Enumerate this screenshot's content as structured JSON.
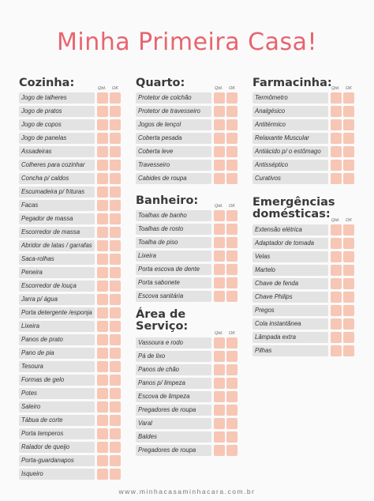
{
  "title": "Minha Primeira Casa!",
  "col_qtd": "Qtd.",
  "col_ok": "OK",
  "footer": "www.minhacasaminhacara.com.br",
  "sections": [
    {
      "id": "cozinha",
      "title": "Cozinha:",
      "items": [
        "Jogo de talheres",
        "Jogo de pratos",
        "Jogo de copos",
        "Jogo de panelas",
        "Assadeiras",
        "Colheres para cozinhar",
        "Concha p/ caldos",
        "Escumadeira p/ frituras",
        "Facas",
        "Pegador de massa",
        "Escorredor de massa",
        "Abridor de latas / garrafas",
        "Saca-rolhas",
        "Peneira",
        "Escorredor de louça",
        "Jarra p/ água",
        "Porta detergente /esponja",
        "Lixeira",
        "Panos de prato",
        "Pano de pia",
        "Tesoura",
        "Formas de gelo",
        "Potes",
        "Saleiro",
        "Tábua de corte",
        "Porta temperos",
        "Ralador de queijo",
        "Porta-guardanapos",
        "Isqueiro"
      ]
    },
    {
      "id": "quarto",
      "title": "Quarto:",
      "items": [
        "Protetor de colchão",
        "Protetor de travesseiro",
        "Jogos de lençol",
        "Coberta pesada",
        "Coberta leve",
        "Travesseiro",
        "Cabides de roupa"
      ]
    },
    {
      "id": "banheiro",
      "title": "Banheiro:",
      "items": [
        "Toalhas de banho",
        "Toalhas de rosto",
        "Toalha de piso",
        "Lixeira",
        "Porta escova de dente",
        "Porta sabonete",
        "Escova sanitária"
      ]
    },
    {
      "id": "servico",
      "title": "Área de",
      "title2": "Serviço:",
      "items": [
        "Vassoura e rodo",
        "Pá de lixo",
        "Panos de chão",
        "Panos p/ limpeza",
        "Escova de limpeza",
        "Pregadores de roupa",
        "Varal",
        "Baldes",
        "Pregadores de roupa"
      ]
    },
    {
      "id": "farmacinha",
      "title": "Farmacinha:",
      "items": [
        "Termômetro",
        "Analgésico",
        "Antitérmico",
        "Relaxante Muscular",
        "Antiácido p/ o estômago",
        "Antisséptico",
        "Curativos"
      ]
    },
    {
      "id": "emergencias",
      "title": "Emergências",
      "title2": "domésticas:",
      "items": [
        "Extensão elétrica",
        "Adaptador de tomada",
        "Velas",
        "Martelo",
        "Chave de fenda",
        "Chave Philips",
        "Pregos",
        "Cola instantânea",
        "Lâmpada extra",
        "Pilhas"
      ]
    }
  ]
}
